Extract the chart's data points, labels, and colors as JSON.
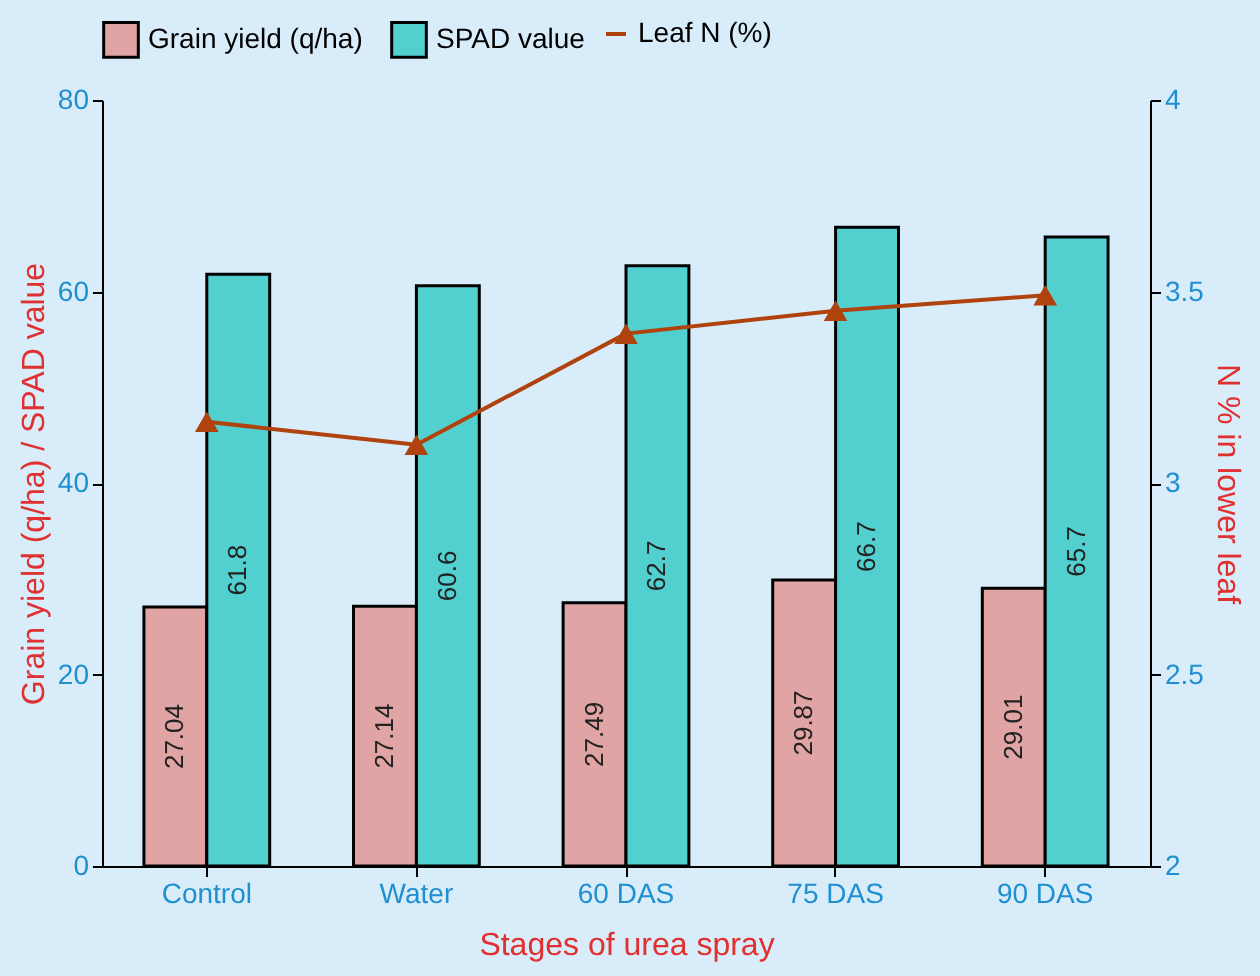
{
  "chart_data": {
    "type": "bar",
    "xlabel": "Stages of urea spray",
    "ylabel": "Grain yield (q/ha) / SPAD value",
    "y2label": "N % in lower leaf",
    "categories": [
      "Control",
      "Water",
      "60 DAS",
      "75 DAS",
      "90 DAS"
    ],
    "series": [
      {
        "name": "Grain yield (q/ha)",
        "color": "#e0a4a4",
        "values": [
          27.04,
          27.14,
          27.49,
          29.87,
          29.01
        ],
        "value_labels": [
          "27.04",
          "27.14",
          "27.49",
          "29.87",
          "29.01"
        ]
      },
      {
        "name": "SPAD value",
        "color": "#52d0d0",
        "values": [
          61.8,
          60.6,
          62.7,
          66.7,
          65.7
        ],
        "value_labels": [
          "61.8",
          "60.6",
          "62.7",
          "66.7",
          "65.7"
        ]
      },
      {
        "name": "Leaf N (%)",
        "type": "line",
        "axis": "y2",
        "color": "#b0420e",
        "marker": "triangle",
        "values": [
          3.16,
          3.1,
          3.39,
          3.45,
          3.49
        ]
      }
    ],
    "ylim": [
      0,
      80
    ],
    "yticks": [
      0,
      20,
      40,
      60,
      80
    ],
    "y2lim": [
      2,
      4
    ],
    "y2ticks": [
      2,
      2.5,
      3,
      3.5,
      4
    ],
    "grid": false,
    "legend": "top"
  }
}
